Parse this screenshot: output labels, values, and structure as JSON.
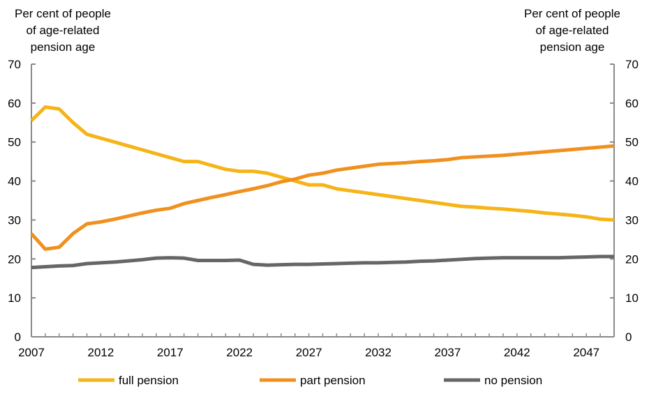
{
  "chart_data": {
    "type": "line",
    "ylabel_left": [
      "Per cent of people",
      "of age-related",
      "pension age"
    ],
    "ylabel_right": [
      "Per cent of people",
      "of age-related",
      "pension age"
    ],
    "xlim": [
      2007,
      2049
    ],
    "ylim": [
      0,
      70
    ],
    "y_ticks": [
      0,
      10,
      20,
      30,
      40,
      50,
      60,
      70
    ],
    "x_ticks": [
      2007,
      2012,
      2017,
      2022,
      2027,
      2032,
      2037,
      2042,
      2047
    ],
    "grid": false,
    "legend_position": "bottom",
    "x": [
      2007,
      2008,
      2009,
      2010,
      2011,
      2012,
      2013,
      2014,
      2015,
      2016,
      2017,
      2018,
      2019,
      2020,
      2021,
      2022,
      2023,
      2024,
      2025,
      2026,
      2027,
      2028,
      2029,
      2030,
      2031,
      2032,
      2033,
      2034,
      2035,
      2036,
      2037,
      2038,
      2039,
      2040,
      2041,
      2042,
      2043,
      2044,
      2045,
      2046,
      2047,
      2048,
      2049
    ],
    "series": [
      {
        "name": "full pension",
        "color": "#F5B417",
        "values": [
          55.5,
          59,
          58.5,
          55,
          52,
          51,
          50,
          49,
          48,
          47,
          46,
          45,
          45,
          44,
          43,
          42.5,
          42.5,
          42,
          41,
          40,
          39,
          39,
          38,
          37.5,
          37,
          36.5,
          36,
          35.5,
          35,
          34.5,
          34,
          33.5,
          33.3,
          33,
          32.8,
          32.5,
          32.2,
          31.8,
          31.5,
          31.2,
          30.8,
          30.2,
          30
        ]
      },
      {
        "name": "part pension",
        "color": "#F0901E",
        "values": [
          26.5,
          22.5,
          23,
          26.5,
          29,
          29.5,
          30.2,
          31,
          31.8,
          32.5,
          33,
          34.2,
          35,
          35.8,
          36.5,
          37.3,
          38,
          38.8,
          39.8,
          40.5,
          41.5,
          42,
          42.8,
          43.3,
          43.8,
          44.3,
          44.5,
          44.7,
          45,
          45.2,
          45.5,
          46,
          46.2,
          46.4,
          46.6,
          46.9,
          47.2,
          47.5,
          47.8,
          48.1,
          48.4,
          48.7,
          49
        ]
      },
      {
        "name": "no pension",
        "color": "#666666",
        "values": [
          17.8,
          18,
          18.2,
          18.3,
          18.8,
          19,
          19.2,
          19.5,
          19.8,
          20.2,
          20.3,
          20.2,
          19.6,
          19.6,
          19.6,
          19.7,
          18.6,
          18.4,
          18.5,
          18.6,
          18.6,
          18.7,
          18.8,
          18.9,
          19,
          19,
          19.1,
          19.2,
          19.4,
          19.5,
          19.7,
          19.9,
          20.1,
          20.2,
          20.3,
          20.3,
          20.3,
          20.3,
          20.3,
          20.4,
          20.5,
          20.6,
          20.6
        ]
      }
    ]
  }
}
